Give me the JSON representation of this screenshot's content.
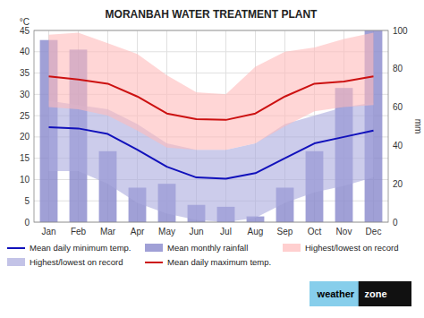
{
  "chart_data": {
    "type": "combo",
    "title": "MORANBAH WATER TREATMENT PLANT",
    "ylabel": "°C",
    "y2label": "mm",
    "categories": [
      "Jan",
      "Feb",
      "Mar",
      "Apr",
      "May",
      "Jun",
      "Jul",
      "Aug",
      "Sep",
      "Oct",
      "Nov",
      "Dec"
    ],
    "series": [
      {
        "name": "Mean daily minimum temp.",
        "type": "line",
        "color": "#1111bb",
        "values": [
          22.3,
          22.0,
          20.7,
          17.0,
          13.0,
          10.5,
          10.2,
          11.5,
          15.0,
          18.5,
          20.0,
          21.5
        ]
      },
      {
        "name": "Highest/lowest on record",
        "type": "area",
        "color": "#aaaadd",
        "low": [
          12.0,
          12.0,
          9.0,
          4.5,
          2.0,
          0.5,
          0.0,
          1.0,
          4.5,
          7.0,
          8.5,
          10.5
        ],
        "values": [
          28.5,
          27.5,
          26.5,
          23.0,
          18.5,
          17.0,
          17.0,
          18.5,
          23.0,
          25.0,
          27.0,
          28.0
        ]
      },
      {
        "name": "Mean monthly rainfall",
        "type": "bar",
        "color": "#8888cc",
        "axis": "y2",
        "values": [
          95,
          90,
          37,
          18,
          20,
          9,
          8,
          3,
          18,
          37,
          70,
          100
        ]
      },
      {
        "name": "Mean daily maximum temp.",
        "type": "line",
        "color": "#cc1111",
        "values": [
          34.2,
          33.5,
          32.5,
          29.5,
          25.5,
          24.2,
          24.0,
          25.5,
          29.5,
          32.5,
          33.0,
          34.2
        ]
      },
      {
        "name": "Highest/lowest on record",
        "type": "area",
        "color": "#ffbbbb",
        "low": [
          27.0,
          26.5,
          25.0,
          21.5,
          17.5,
          17.0,
          17.0,
          18.5,
          22.5,
          26.0,
          27.0,
          27.5
        ],
        "values": [
          44.0,
          44.5,
          42.0,
          39.5,
          34.5,
          30.5,
          30.0,
          36.5,
          40.0,
          41.0,
          43.0,
          44.5
        ]
      }
    ],
    "ylim": [
      0,
      45
    ],
    "yticks": [
      0,
      5,
      10,
      15,
      20,
      25,
      30,
      35,
      40,
      45
    ],
    "y2lim": [
      0,
      100
    ],
    "y2ticks": [
      0,
      20,
      40,
      60,
      80,
      100
    ],
    "grid": true,
    "legend": "bottom",
    "annotations": [
      "weather",
      "zone"
    ]
  }
}
